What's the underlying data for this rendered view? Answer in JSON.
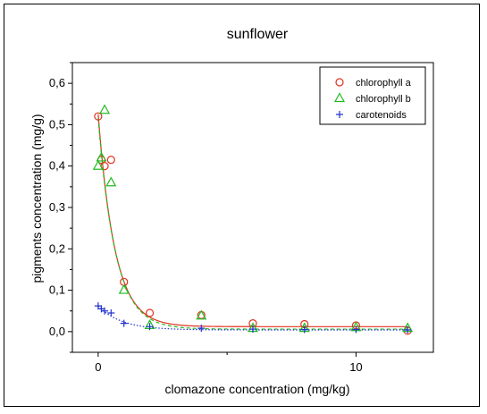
{
  "chart_data": {
    "type": "scatter",
    "title": "sunflower",
    "xlabel": "clomazone concentration (mg/kg)",
    "ylabel": "pigments concentration (mg/g)",
    "xlim": [
      -1,
      13
    ],
    "ylim": [
      -0.05,
      0.65
    ],
    "x_ticks": [
      0,
      10
    ],
    "x_tick_labels": [
      "0",
      "10"
    ],
    "y_ticks": [
      0.0,
      0.1,
      0.2,
      0.3,
      0.4,
      0.5,
      0.6
    ],
    "y_tick_labels": [
      "0,0",
      "0,1",
      "0,2",
      "0,3",
      "0,4",
      "0,5",
      "0,6"
    ],
    "legend_position": "top-right",
    "series": [
      {
        "name": "chlorophyll a",
        "marker": "circle",
        "color": "#e0301e",
        "points": [
          [
            0,
            0.52
          ],
          [
            0.125,
            0.415
          ],
          [
            0.25,
            0.4
          ],
          [
            0.5,
            0.415
          ],
          [
            1,
            0.12
          ],
          [
            2,
            0.045
          ],
          [
            4,
            0.04
          ],
          [
            6,
            0.02
          ],
          [
            8,
            0.018
          ],
          [
            10,
            0.015
          ],
          [
            12,
            0.002
          ]
        ],
        "fit": {
          "style": "solid",
          "y0": 0.012,
          "a": 0.513,
          "k": 1.55
        }
      },
      {
        "name": "chlorophyll b",
        "marker": "triangle",
        "color": "#22bb22",
        "points": [
          [
            0,
            0.4
          ],
          [
            0.125,
            0.42
          ],
          [
            0.25,
            0.535
          ],
          [
            0.5,
            0.36
          ],
          [
            1,
            0.1
          ],
          [
            2,
            0.015
          ],
          [
            4,
            0.038
          ],
          [
            6,
            0.008
          ],
          [
            8,
            0.008
          ],
          [
            10,
            0.01
          ],
          [
            12,
            0.008
          ]
        ],
        "fit": {
          "style": "dashed",
          "y0": 0.006,
          "a": 0.51,
          "k": 1.5
        }
      },
      {
        "name": "carotenoids",
        "marker": "plus",
        "color": "#2233cc",
        "points": [
          [
            0,
            0.062
          ],
          [
            0.125,
            0.055
          ],
          [
            0.25,
            0.05
          ],
          [
            0.5,
            0.045
          ],
          [
            1,
            0.02
          ],
          [
            2,
            0.012
          ],
          [
            4,
            0.008
          ],
          [
            6,
            0.006
          ],
          [
            8,
            0.005
          ],
          [
            10,
            0.005
          ],
          [
            12,
            0.004
          ]
        ],
        "fit": {
          "style": "dotted",
          "y0": 0.004,
          "a": 0.058,
          "k": 1.1
        }
      }
    ]
  }
}
